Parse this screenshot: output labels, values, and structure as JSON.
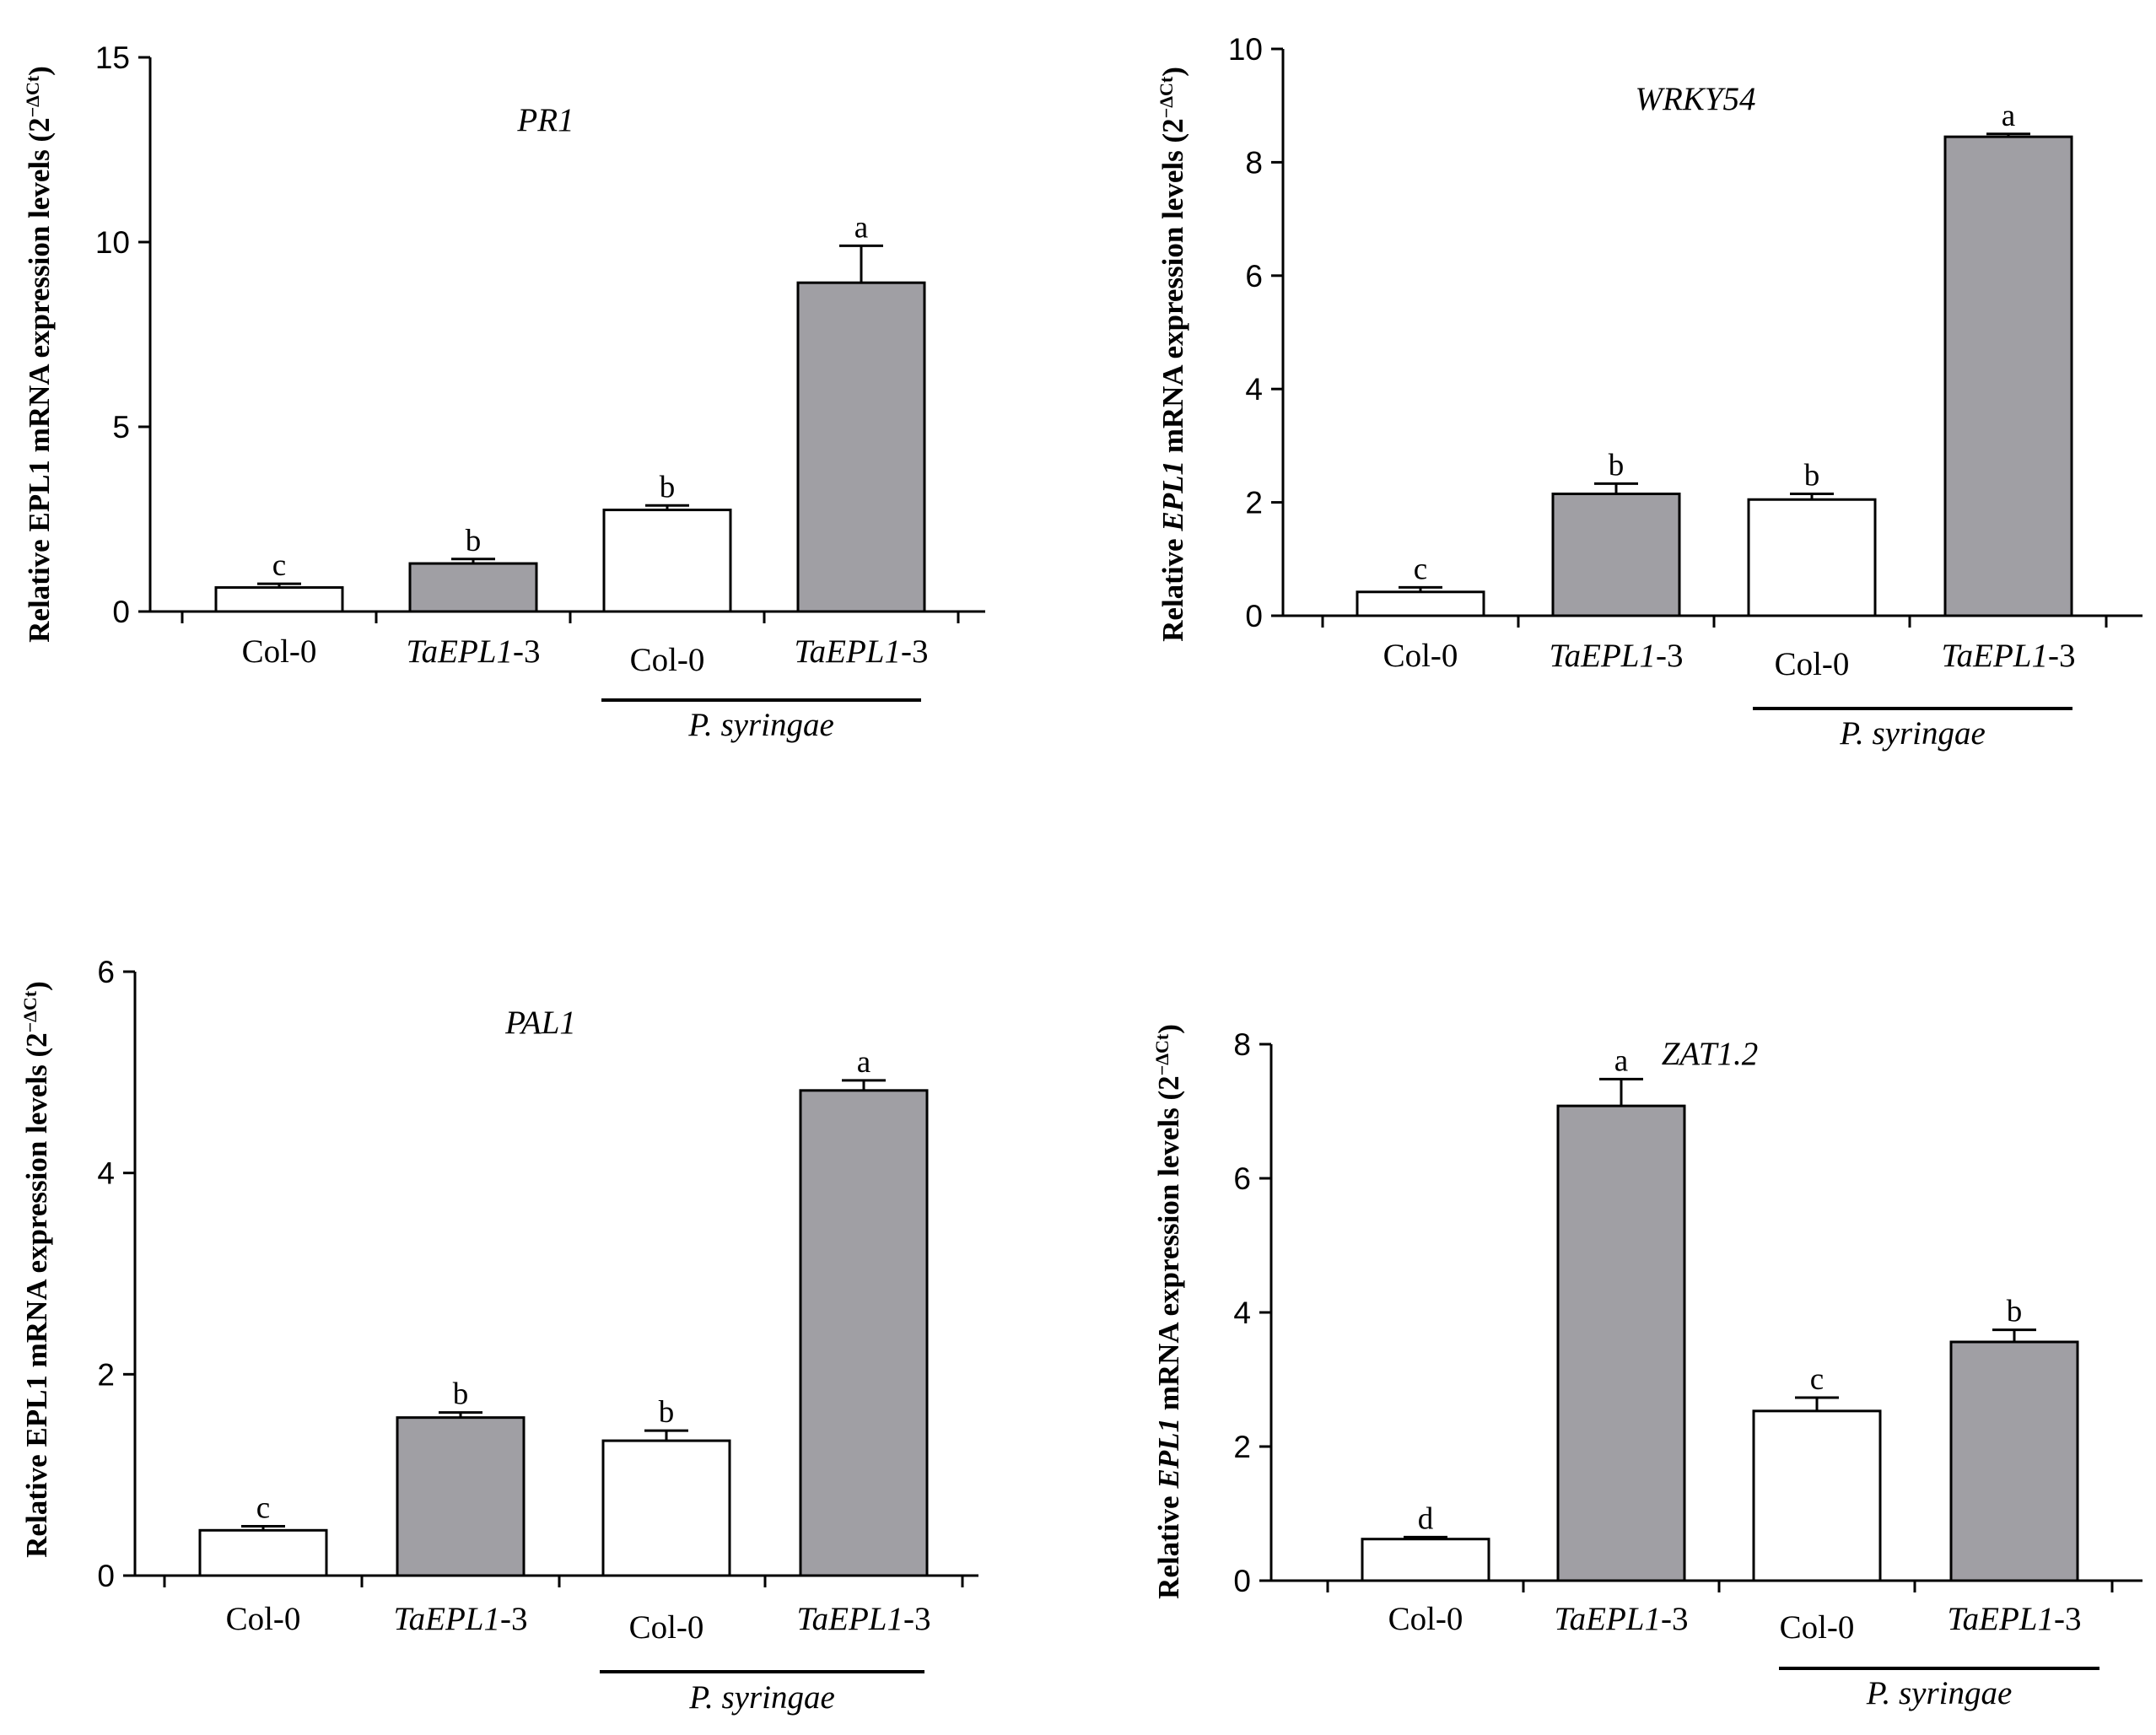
{
  "figure_colors": {
    "control_bar": "#ffffff",
    "transgenic_bar": "#a09fa4",
    "stroke": "#000000"
  },
  "chart_data": [
    {
      "type": "bar",
      "title": "PR1",
      "ylabel": {
        "prefix": "Relative EPL1 mRNA expression levels (2",
        "exponent": "−ΔCt",
        "suffix": ")",
        "epl1_italic": false
      },
      "ylim": [
        0,
        15
      ],
      "yticks": [
        0,
        5,
        10,
        15
      ],
      "categories": [
        {
          "label_italic": "",
          "label_plain": "Col-0"
        },
        {
          "label_italic": "TaEPL1",
          "label_plain": "-3"
        },
        {
          "label_italic": "",
          "label_plain": "Col-0"
        },
        {
          "label_italic": "TaEPL1",
          "label_plain": "-3"
        }
      ],
      "values": [
        0.65,
        1.3,
        2.75,
        8.9
      ],
      "errors": [
        0.1,
        0.12,
        0.12,
        1.0
      ],
      "significance": [
        "c",
        "b",
        "b",
        "a"
      ],
      "fills": [
        "control",
        "transgenic",
        "control",
        "transgenic"
      ],
      "treatment": {
        "label": "P. syringae",
        "span": [
          2,
          3
        ]
      }
    },
    {
      "type": "bar",
      "title": "WRKY54",
      "ylabel": {
        "prefix_a": "Relative ",
        "gene": "EPL1",
        "prefix_b": " mRNA expression levels (2",
        "exponent": "−ΔCt",
        "suffix": ")",
        "epl1_italic": true
      },
      "ylim": [
        0,
        10
      ],
      "yticks": [
        0,
        2,
        4,
        6,
        8,
        10
      ],
      "categories": [
        {
          "label_italic": "",
          "label_plain": "Col-0"
        },
        {
          "label_italic": "TaEPL1",
          "label_plain": "-3"
        },
        {
          "label_italic": "",
          "label_plain": "Col-0"
        },
        {
          "label_italic": "TaEPL1",
          "label_plain": "-3"
        }
      ],
      "values": [
        0.42,
        2.15,
        2.05,
        8.45
      ],
      "errors": [
        0.08,
        0.18,
        0.1,
        0.05
      ],
      "significance": [
        "c",
        "b",
        "b",
        "a"
      ],
      "fills": [
        "control",
        "transgenic",
        "control",
        "transgenic"
      ],
      "treatment": {
        "label": "P. syringae",
        "span": [
          2,
          3
        ]
      }
    },
    {
      "type": "bar",
      "title": "PAL1",
      "ylabel": {
        "prefix": "Relative EPL1 mRNA expression levels (2",
        "exponent": "−ΔCt",
        "suffix": ")",
        "epl1_italic": false
      },
      "ylim": [
        0,
        6
      ],
      "yticks": [
        0,
        2,
        4,
        6
      ],
      "categories": [
        {
          "label_italic": "",
          "label_plain": "Col-0"
        },
        {
          "label_italic": "TaEPL1",
          "label_plain": "-3"
        },
        {
          "label_italic": "",
          "label_plain": "Col-0"
        },
        {
          "label_italic": "TaEPL1",
          "label_plain": "-3"
        }
      ],
      "values": [
        0.45,
        1.57,
        1.34,
        4.82
      ],
      "errors": [
        0.04,
        0.05,
        0.1,
        0.1
      ],
      "significance": [
        "c",
        "b",
        "b",
        "a"
      ],
      "fills": [
        "control",
        "transgenic",
        "control",
        "transgenic"
      ],
      "treatment": {
        "label": "P. syringae",
        "span": [
          2,
          3
        ]
      }
    },
    {
      "type": "bar",
      "title": "ZAT1.2",
      "ylabel": {
        "prefix_a": "Relative ",
        "gene": "EPL1",
        "prefix_b": " mRNA expression levels (2",
        "exponent": "−ΔCt",
        "suffix": ")",
        "epl1_italic": true
      },
      "ylim": [
        0,
        8
      ],
      "yticks": [
        0,
        2,
        4,
        6,
        8
      ],
      "categories": [
        {
          "label_italic": "",
          "label_plain": "Col-0"
        },
        {
          "label_italic": "TaEPL1",
          "label_plain": "-3"
        },
        {
          "label_italic": "",
          "label_plain": "Col-0"
        },
        {
          "label_italic": "TaEPL1",
          "label_plain": "-3"
        }
      ],
      "values": [
        0.62,
        7.08,
        2.53,
        3.56
      ],
      "errors": [
        0.03,
        0.4,
        0.2,
        0.18
      ],
      "significance": [
        "d",
        "a",
        "c",
        "b"
      ],
      "fills": [
        "control",
        "transgenic",
        "control",
        "transgenic"
      ],
      "treatment": {
        "label": "P. syringae",
        "span": [
          2,
          3
        ]
      }
    }
  ]
}
